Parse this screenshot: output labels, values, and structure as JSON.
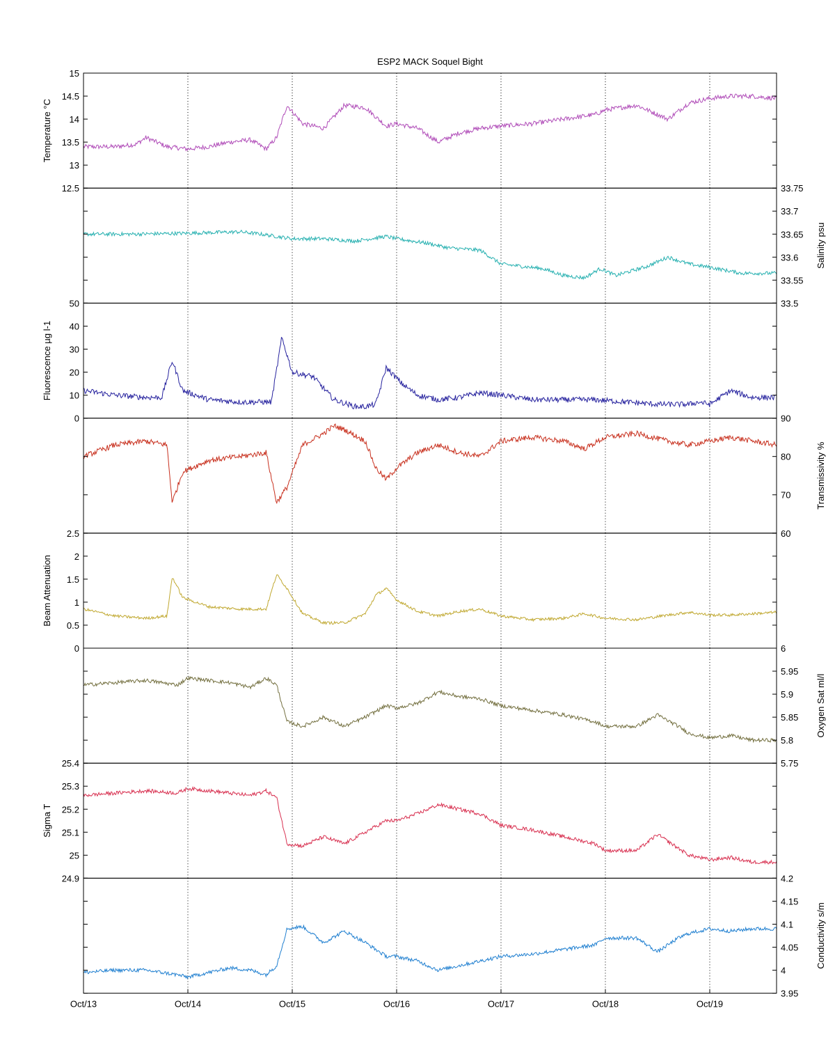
{
  "chart_data": {
    "type": "line",
    "title": "ESP2 MACK  Soquel Bight",
    "x_domain": [
      "Oct/13",
      "Oct/19 + 0.64 day"
    ],
    "x_tick_labels": [
      "Oct/13",
      "Oct/14",
      "Oct/15",
      "Oct/16",
      "Oct/17",
      "Oct/18",
      "Oct/19"
    ],
    "x_range_days": [
      0,
      6.64
    ],
    "grid": "vertical dotted at each day",
    "panels": [
      {
        "name": "temperature",
        "ylabel": "Temperature °C",
        "axis_side": "left",
        "ylim": [
          12.5,
          15
        ],
        "ticks": [
          "12.5",
          "13",
          "13.5",
          "14",
          "14.5",
          "15"
        ],
        "color": "#b04cb8",
        "x": [
          0,
          0.3,
          0.5,
          0.6,
          0.8,
          1.0,
          1.2,
          1.4,
          1.6,
          1.75,
          1.85,
          1.95,
          2.1,
          2.3,
          2.5,
          2.7,
          2.9,
          3.0,
          3.2,
          3.4,
          3.6,
          3.8,
          4.0,
          4.3,
          4.6,
          4.9,
          5.0,
          5.3,
          5.6,
          5.8,
          6.0,
          6.2,
          6.4,
          6.64
        ],
        "y": [
          13.4,
          13.4,
          13.45,
          13.6,
          13.4,
          13.35,
          13.4,
          13.5,
          13.55,
          13.35,
          13.6,
          14.3,
          13.9,
          13.8,
          14.3,
          14.25,
          13.85,
          13.9,
          13.8,
          13.5,
          13.7,
          13.8,
          13.85,
          13.9,
          14.0,
          14.1,
          14.2,
          14.3,
          14.0,
          14.35,
          14.45,
          14.5,
          14.5,
          14.45
        ],
        "noise": 0.05
      },
      {
        "name": "salinity",
        "ylabel": "Salinity psu",
        "axis_side": "right",
        "ylim": [
          33.5,
          33.75
        ],
        "ticks": [
          "33.5",
          "33.55",
          "33.6",
          "33.65",
          "33.7",
          "33.75"
        ],
        "color": "#26b0b0",
        "x": [
          0,
          0.5,
          1.0,
          1.5,
          1.7,
          2.0,
          2.3,
          2.6,
          2.9,
          3.0,
          3.3,
          3.5,
          3.8,
          4.0,
          4.2,
          4.4,
          4.6,
          4.8,
          4.95,
          5.1,
          5.4,
          5.6,
          5.8,
          6.0,
          6.3,
          6.64
        ],
        "y": [
          33.65,
          33.65,
          33.652,
          33.655,
          33.65,
          33.64,
          33.64,
          33.635,
          33.645,
          33.64,
          33.63,
          33.62,
          33.615,
          33.585,
          33.58,
          33.575,
          33.56,
          33.555,
          33.575,
          33.56,
          33.58,
          33.6,
          33.585,
          33.578,
          33.565,
          33.565
        ],
        "noise": 0.004
      },
      {
        "name": "fluorescence",
        "ylabel": "Fluorescence µg l-1",
        "axis_side": "left",
        "ylim": [
          0,
          50
        ],
        "ticks": [
          "0",
          "10",
          "20",
          "30",
          "40",
          "50"
        ],
        "color": "#26229e",
        "x": [
          0,
          0.3,
          0.6,
          0.75,
          0.85,
          0.95,
          1.2,
          1.5,
          1.8,
          1.9,
          2.0,
          2.2,
          2.4,
          2.6,
          2.7,
          2.8,
          2.9,
          3.05,
          3.2,
          3.4,
          3.6,
          3.8,
          4.0,
          4.3,
          4.6,
          4.9,
          5.2,
          5.5,
          5.8,
          5.9,
          6.0,
          6.2,
          6.4,
          6.64
        ],
        "y": [
          12,
          10,
          9,
          9,
          25,
          12,
          8,
          7,
          7,
          35,
          20,
          18,
          8,
          5,
          5,
          6,
          22,
          15,
          10,
          8,
          9,
          11,
          10,
          8,
          8,
          8,
          7,
          6,
          6,
          7,
          6,
          12,
          9,
          9
        ],
        "noise": 1.2
      },
      {
        "name": "transmissivity",
        "ylabel": "Transmissivity %",
        "axis_side": "right",
        "ylim": [
          60,
          90
        ],
        "ticks": [
          "60",
          "70",
          "80",
          "90"
        ],
        "color": "#c8301e",
        "x": [
          0,
          0.3,
          0.6,
          0.8,
          0.85,
          0.95,
          1.2,
          1.5,
          1.75,
          1.85,
          1.95,
          2.1,
          2.3,
          2.4,
          2.5,
          2.7,
          2.8,
          2.9,
          3.0,
          3.2,
          3.4,
          3.6,
          3.8,
          4.0,
          4.3,
          4.6,
          4.8,
          5.0,
          5.3,
          5.6,
          5.8,
          6.0,
          6.2,
          6.64
        ],
        "y": [
          80,
          83,
          84,
          83,
          68,
          76,
          79,
          80,
          81,
          68,
          72,
          83,
          86,
          88,
          87,
          84,
          77,
          74,
          77,
          81,
          83,
          81,
          80,
          84,
          85,
          84,
          82,
          85,
          86,
          84,
          83,
          84,
          85,
          83
        ],
        "noise": 0.7
      },
      {
        "name": "beam_attenuation",
        "ylabel": "Beam Attenuation",
        "axis_side": "left",
        "ylim": [
          0,
          2.5
        ],
        "ticks": [
          "0",
          "0.5",
          "1",
          "1.5",
          "2",
          "2.5"
        ],
        "color": "#c0a830",
        "x": [
          0,
          0.3,
          0.6,
          0.8,
          0.85,
          0.95,
          1.2,
          1.5,
          1.75,
          1.85,
          1.95,
          2.1,
          2.3,
          2.4,
          2.5,
          2.7,
          2.8,
          2.9,
          3.0,
          3.2,
          3.4,
          3.6,
          3.8,
          4.0,
          4.3,
          4.6,
          4.8,
          5.0,
          5.3,
          5.6,
          5.8,
          6.0,
          6.2,
          6.64
        ],
        "y": [
          0.85,
          0.7,
          0.65,
          0.7,
          1.55,
          1.1,
          0.9,
          0.85,
          0.85,
          1.6,
          1.3,
          0.75,
          0.55,
          0.55,
          0.55,
          0.75,
          1.15,
          1.3,
          1.05,
          0.8,
          0.7,
          0.8,
          0.85,
          0.7,
          0.62,
          0.65,
          0.75,
          0.65,
          0.62,
          0.72,
          0.78,
          0.72,
          0.72,
          0.78
        ],
        "noise": 0.03
      },
      {
        "name": "oxygen_sat",
        "ylabel": "Oxygen Sat ml/l",
        "axis_side": "right",
        "ylim": [
          5.75,
          6
        ],
        "ticks": [
          "5.75",
          "5.8",
          "5.85",
          "5.9",
          "5.95",
          "6"
        ],
        "color": "#747040",
        "x": [
          0,
          0.3,
          0.6,
          0.9,
          1.0,
          1.2,
          1.4,
          1.6,
          1.75,
          1.85,
          1.95,
          2.1,
          2.3,
          2.5,
          2.7,
          2.9,
          3.0,
          3.2,
          3.4,
          3.6,
          3.8,
          4.0,
          4.3,
          4.6,
          4.9,
          5.0,
          5.3,
          5.5,
          5.7,
          5.8,
          6.0,
          6.2,
          6.4,
          6.64
        ],
        "y": [
          5.92,
          5.925,
          5.93,
          5.92,
          5.935,
          5.93,
          5.925,
          5.915,
          5.935,
          5.92,
          5.84,
          5.83,
          5.85,
          5.83,
          5.85,
          5.875,
          5.87,
          5.88,
          5.905,
          5.895,
          5.89,
          5.875,
          5.865,
          5.855,
          5.84,
          5.83,
          5.83,
          5.855,
          5.83,
          5.815,
          5.805,
          5.81,
          5.8,
          5.8
        ],
        "noise": 0.004
      },
      {
        "name": "sigma_t",
        "ylabel": "Sigma T",
        "axis_side": "left",
        "ylim": [
          24.9,
          25.4
        ],
        "ticks": [
          "24.9",
          "25",
          "25.1",
          "25.2",
          "25.3",
          "25.4"
        ],
        "color": "#d83050",
        "x": [
          0,
          0.3,
          0.6,
          0.9,
          1.0,
          1.2,
          1.4,
          1.6,
          1.75,
          1.85,
          1.95,
          2.1,
          2.3,
          2.5,
          2.7,
          2.9,
          3.0,
          3.2,
          3.4,
          3.6,
          3.8,
          4.0,
          4.3,
          4.6,
          4.9,
          5.0,
          5.3,
          5.5,
          5.7,
          5.8,
          6.0,
          6.2,
          6.4,
          6.64
        ],
        "y": [
          25.26,
          25.27,
          25.28,
          25.27,
          25.29,
          25.28,
          25.27,
          25.26,
          25.28,
          25.25,
          25.05,
          25.04,
          25.08,
          25.05,
          25.1,
          25.15,
          25.15,
          25.18,
          25.22,
          25.2,
          25.18,
          25.13,
          25.11,
          25.08,
          25.05,
          25.02,
          25.02,
          25.09,
          25.03,
          25.0,
          24.98,
          24.99,
          24.97,
          24.97
        ],
        "noise": 0.008
      },
      {
        "name": "conductivity",
        "ylabel": "Conductivity s/m",
        "axis_side": "right",
        "ylim": [
          3.95,
          4.2
        ],
        "ticks": [
          "3.95",
          "4",
          "4.05",
          "4.1",
          "4.15",
          "4.2"
        ],
        "color": "#1f7fd0",
        "x": [
          0,
          0.3,
          0.6,
          0.9,
          1.0,
          1.2,
          1.4,
          1.6,
          1.75,
          1.85,
          1.95,
          2.1,
          2.3,
          2.5,
          2.7,
          2.9,
          3.0,
          3.2,
          3.4,
          3.6,
          3.8,
          4.0,
          4.3,
          4.6,
          4.9,
          5.0,
          5.3,
          5.5,
          5.7,
          5.8,
          6.0,
          6.2,
          6.4,
          6.64
        ],
        "y": [
          3.995,
          4.0,
          4.0,
          3.99,
          3.985,
          3.995,
          4.005,
          4.0,
          3.99,
          4.01,
          4.09,
          4.095,
          4.06,
          4.085,
          4.06,
          4.03,
          4.03,
          4.02,
          4.0,
          4.01,
          4.02,
          4.03,
          4.035,
          4.045,
          4.055,
          4.07,
          4.07,
          4.04,
          4.07,
          4.08,
          4.09,
          4.085,
          4.09,
          4.09
        ],
        "noise": 0.004
      }
    ]
  }
}
